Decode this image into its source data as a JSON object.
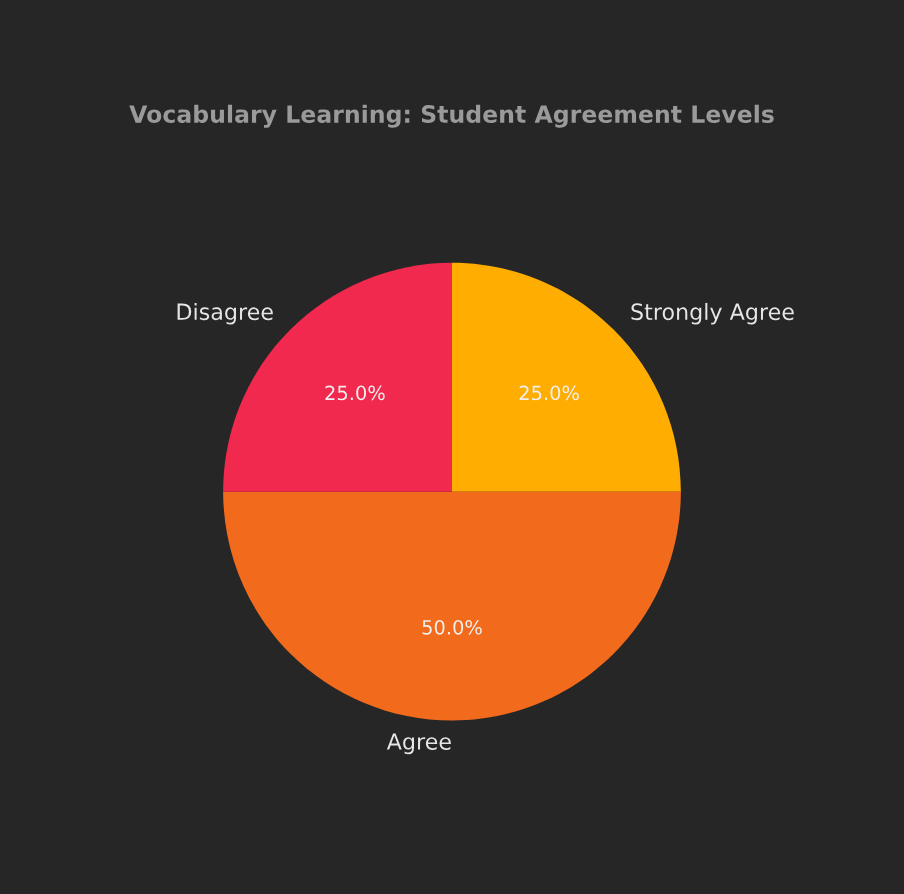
{
  "chart_data": {
    "type": "pie",
    "title": "Vocabulary Learning: Student Agreement Levels",
    "categories": [
      "Strongly Agree",
      "Agree",
      "Disagree"
    ],
    "values": [
      25,
      50,
      25
    ],
    "colors": [
      "#ffad00",
      "#f26b1d",
      "#f2294e"
    ],
    "value_labels": [
      "25.0%",
      "50.0%",
      "25.0%"
    ]
  }
}
